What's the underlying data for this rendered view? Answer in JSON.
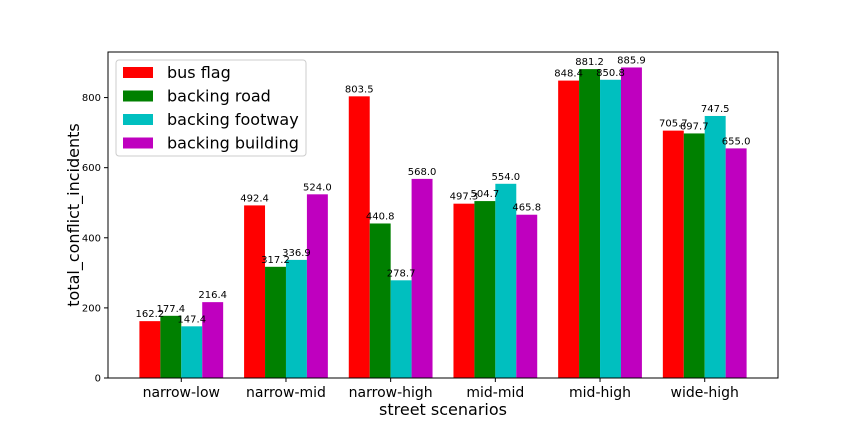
{
  "chart_data": {
    "type": "bar",
    "xlabel": "street scenarios",
    "ylabel": "total_conflict_incidents",
    "ylim": [
      0,
      930
    ],
    "yticks": [
      0,
      200,
      400,
      600,
      800
    ],
    "grid": false,
    "legend_position": "top-left",
    "categories": [
      "narrow-low",
      "narrow-mid",
      "narrow-high",
      "mid-mid",
      "mid-high",
      "wide-high"
    ],
    "series": [
      {
        "name": "bus flag",
        "color": "#ff0000",
        "values": [
          162.2,
          492.4,
          803.5,
          497.3,
          848.4,
          705.7
        ]
      },
      {
        "name": "backing road",
        "color": "#008000",
        "values": [
          177.4,
          317.2,
          440.8,
          504.7,
          881.2,
          697.7
        ]
      },
      {
        "name": "backing footway",
        "color": "#00bfbf",
        "values": [
          147.4,
          336.9,
          278.7,
          554.0,
          850.8,
          747.5
        ]
      },
      {
        "name": "backing building",
        "color": "#bf00bf",
        "values": [
          216.4,
          524.0,
          568.0,
          465.8,
          885.9,
          655.0
        ]
      }
    ]
  }
}
